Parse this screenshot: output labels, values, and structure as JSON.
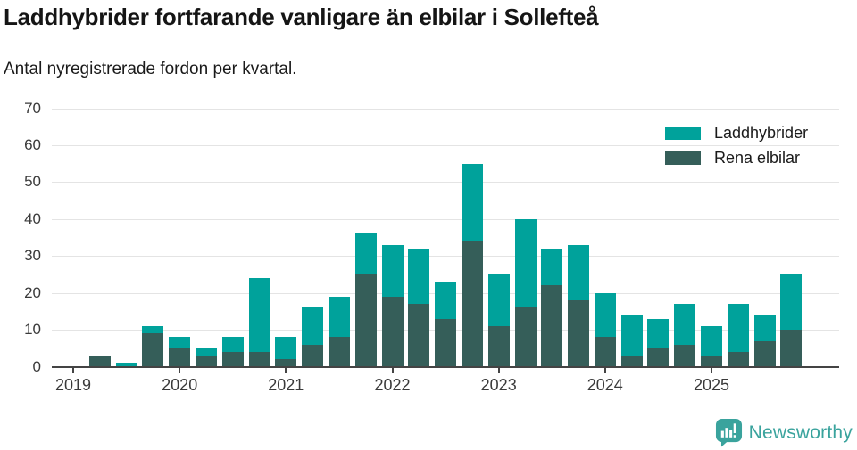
{
  "header": {
    "title": "Laddhybrider fortfarande vanligare än elbilar i Sollefteå",
    "subtitle": "Antal nyregistrerade fordon per kvartal."
  },
  "chart_data": {
    "type": "bar",
    "stacked": true,
    "title": "Laddhybrider fortfarande vanligare än elbilar i Sollefteå",
    "subtitle": "Antal nyregistrerade fordon per kvartal.",
    "xlabel": "",
    "ylabel": "",
    "ylim": [
      0,
      70
    ],
    "yticks": [
      0,
      10,
      20,
      30,
      40,
      50,
      60,
      70
    ],
    "grid": "horizontal",
    "legend_position": "top-right",
    "categories": [
      "2019 Q1",
      "2019 Q2",
      "2019 Q3",
      "2019 Q4",
      "2020 Q1",
      "2020 Q2",
      "2020 Q3",
      "2020 Q4",
      "2021 Q1",
      "2021 Q2",
      "2021 Q3",
      "2021 Q4",
      "2022 Q1",
      "2022 Q2",
      "2022 Q3",
      "2022 Q4",
      "2023 Q1",
      "2023 Q2",
      "2023 Q3",
      "2023 Q4",
      "2024 Q1",
      "2024 Q2",
      "2024 Q3",
      "2024 Q4",
      "2025 Q1",
      "2025 Q2",
      "2025 Q3",
      "2025 Q4"
    ],
    "x_year_tick_labels": [
      "2019",
      "2020",
      "2021",
      "2022",
      "2023",
      "2024",
      "2025"
    ],
    "x_tick_every": 4,
    "series": [
      {
        "name": "Laddhybrider",
        "color": "#00a29b",
        "stack": "top",
        "values": [
          0,
          0,
          1,
          2,
          3,
          2,
          4,
          20,
          6,
          10,
          11,
          11,
          14,
          15,
          10,
          21,
          14,
          24,
          10,
          15,
          12,
          11,
          8,
          11,
          8,
          13,
          7,
          15
        ]
      },
      {
        "name": "Rena elbilar",
        "color": "#355e59",
        "stack": "bottom",
        "values": [
          0,
          3,
          0,
          9,
          5,
          3,
          4,
          4,
          2,
          6,
          8,
          25,
          19,
          17,
          13,
          34,
          11,
          16,
          22,
          18,
          8,
          3,
          5,
          6,
          3,
          4,
          7,
          10
        ]
      }
    ]
  },
  "footer": {
    "logo_text": "Newsworthy",
    "logo_color": "#3aa39d"
  }
}
